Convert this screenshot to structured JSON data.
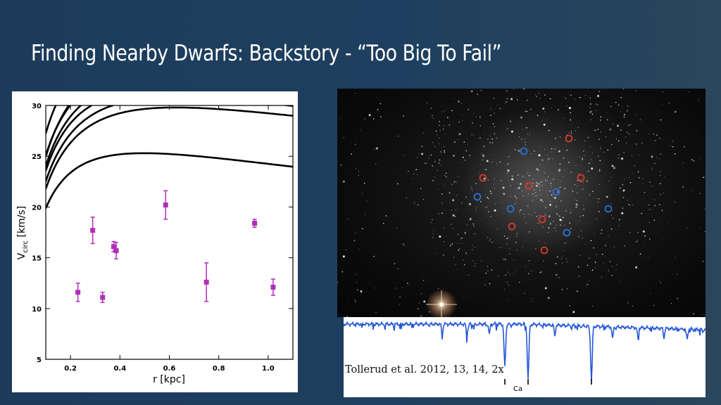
{
  "slide": {
    "title": "Finding Nearby Dwarfs: Backstory - “Too Big To Fail”"
  },
  "chart_data": {
    "type": "scatter",
    "xlabel": "r  [kpc]",
    "ylabel": "V",
    "ylabel_sub": "circ",
    "ylabel_unit": " [km/s]",
    "xlim": [
      0.1,
      1.1
    ],
    "ylim": [
      5,
      30
    ],
    "xticks": [
      0.2,
      0.4,
      0.6,
      0.8,
      1.0
    ],
    "xtick_labels": [
      "0.2",
      "0.4",
      "0.6",
      "0.8",
      "1.0"
    ],
    "yticks": [
      5,
      10,
      15,
      20,
      25,
      30
    ],
    "ytick_labels": [
      "5",
      "10",
      "15",
      "20",
      "25",
      "30"
    ],
    "grid": false,
    "points_color": "#b12fb8",
    "points": [
      {
        "x": 0.23,
        "y": 11.6,
        "err": 0.9
      },
      {
        "x": 0.29,
        "y": 17.7,
        "err": 1.3
      },
      {
        "x": 0.33,
        "y": 11.1,
        "err": 0.5
      },
      {
        "x": 0.375,
        "y": 16.1,
        "err": 0.5
      },
      {
        "x": 0.385,
        "y": 15.7,
        "err": 0.8
      },
      {
        "x": 0.585,
        "y": 20.2,
        "err": 1.4
      },
      {
        "x": 0.75,
        "y": 12.6,
        "err": 1.9
      },
      {
        "x": 0.945,
        "y": 18.4,
        "err": 0.4
      },
      {
        "x": 1.02,
        "y": 12.1,
        "err": 0.8
      }
    ],
    "curves_color": "#000000",
    "curves": [
      {
        "vmax": 25.3,
        "rs": 0.23
      },
      {
        "vmax": 29.8,
        "rs": 0.29
      },
      {
        "vmax": 30.8,
        "rs": 0.29
      },
      {
        "vmax": 31.5,
        "rs": 0.27
      },
      {
        "vmax": 32.5,
        "rs": 0.28
      },
      {
        "vmax": 33.5,
        "rs": 0.27
      },
      {
        "vmax": 34.5,
        "rs": 0.3
      },
      {
        "vmax": 36.0,
        "rs": 0.26
      },
      {
        "vmax": 38.5,
        "rs": 0.21
      },
      {
        "vmax": 41.0,
        "rs": 0.17
      },
      {
        "vmax": 45.0,
        "rs": 0.15
      }
    ]
  },
  "starfield": {
    "red_marker_color": "#d63a2c",
    "blue_marker_color": "#2c6fd6",
    "red_markers": [
      {
        "x": 808,
        "y": 197
      },
      {
        "x": 686,
        "y": 253
      },
      {
        "x": 751,
        "y": 264
      },
      {
        "x": 825,
        "y": 253
      },
      {
        "x": 770,
        "y": 312
      },
      {
        "x": 727,
        "y": 322
      },
      {
        "x": 773,
        "y": 356
      }
    ],
    "blue_markers": [
      {
        "x": 744,
        "y": 215
      },
      {
        "x": 678,
        "y": 280
      },
      {
        "x": 790,
        "y": 273
      },
      {
        "x": 725,
        "y": 297
      },
      {
        "x": 864,
        "y": 297
      },
      {
        "x": 805,
        "y": 331
      }
    ]
  },
  "spectrum": {
    "line_color": "#2357d8",
    "marker_label": "Ca",
    "citation": "Tollerud et al. 2012, 13, 14, 2x"
  }
}
